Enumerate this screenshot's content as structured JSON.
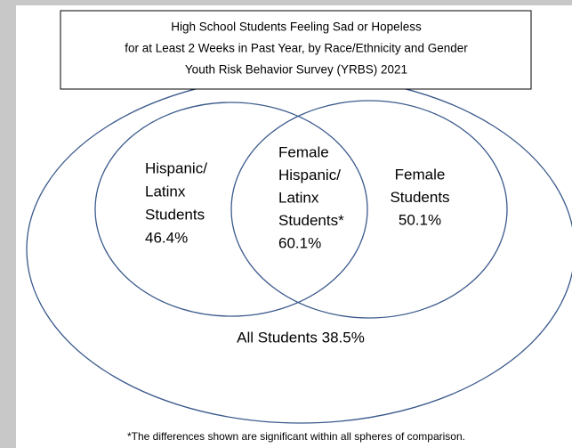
{
  "title": {
    "lines": [
      "High School Students Feeling Sad or Hopeless",
      "for at Least 2 Weeks in Past Year, by Race/Ethnicity and Gender",
      "Youth Risk Behavior Survey (YRBS) 2021"
    ]
  },
  "regions": [
    {
      "lines": [
        "Hispanic/",
        "Latinx",
        "Students",
        "46.4%"
      ]
    },
    {
      "lines": [
        "Female",
        "Hispanic/",
        "Latinx",
        "Students*",
        "60.1%"
      ]
    },
    {
      "lines": [
        "Female",
        "Students",
        "50.1%"
      ]
    },
    {
      "lines": [
        "All Students 38.5%"
      ]
    }
  ],
  "footnote": "*The differences shown are significant within all spheres of comparison."
}
